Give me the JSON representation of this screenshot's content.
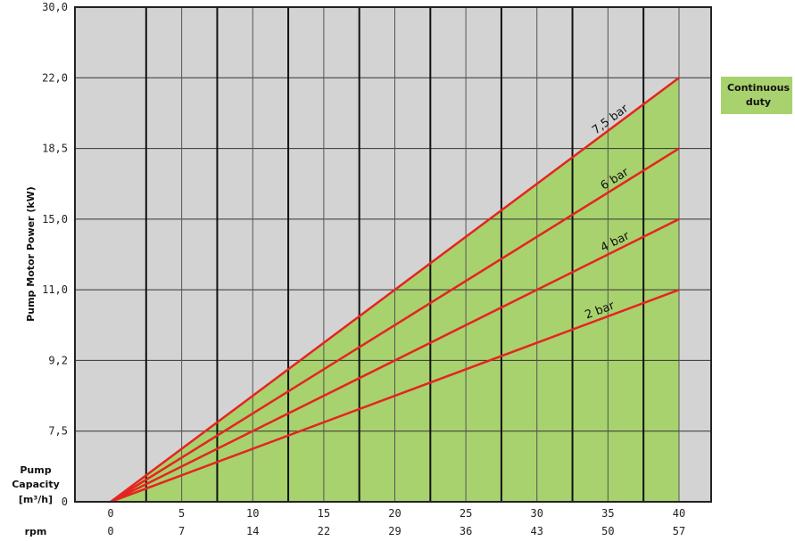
{
  "chart_data": {
    "type": "line",
    "ylabel": "Pump Motor Power (kW)",
    "y_ticks": [
      "30,0",
      "22,0",
      "18,5",
      "15,0",
      "11,0",
      "9,2",
      "7,5",
      "0"
    ],
    "x_ticks_capacity": [
      "0",
      "5",
      "10",
      "15",
      "20",
      "25",
      "30",
      "35",
      "40"
    ],
    "x_ticks_rpm": [
      "0",
      "7",
      "14",
      "22",
      "29",
      "36",
      "43",
      "50",
      "57"
    ],
    "x_axis_capacity_label": [
      "Pump",
      "Capacity",
      "[m³/h]"
    ],
    "x_axis_rpm_label": "rpm",
    "xlim": [
      0,
      40
    ],
    "series": [
      {
        "name": "7,5 bar",
        "x": [
          0,
          40
        ],
        "y_level": [
          0,
          6
        ],
        "color": "#e52421"
      },
      {
        "name": "6 bar",
        "x": [
          0,
          40
        ],
        "y_level": [
          0,
          5
        ],
        "color": "#e52421"
      },
      {
        "name": "4 bar",
        "x": [
          0,
          40
        ],
        "y_level": [
          0,
          4
        ],
        "color": "#e52421"
      },
      {
        "name": "2 bar",
        "x": [
          0,
          40
        ],
        "y_level": [
          0,
          3
        ],
        "color": "#e52421"
      }
    ],
    "shaded_region": {
      "label": [
        "Continuous",
        "duty"
      ],
      "color": "#a8d26d"
    },
    "grid": true,
    "background_color": "#d3d3d3"
  }
}
